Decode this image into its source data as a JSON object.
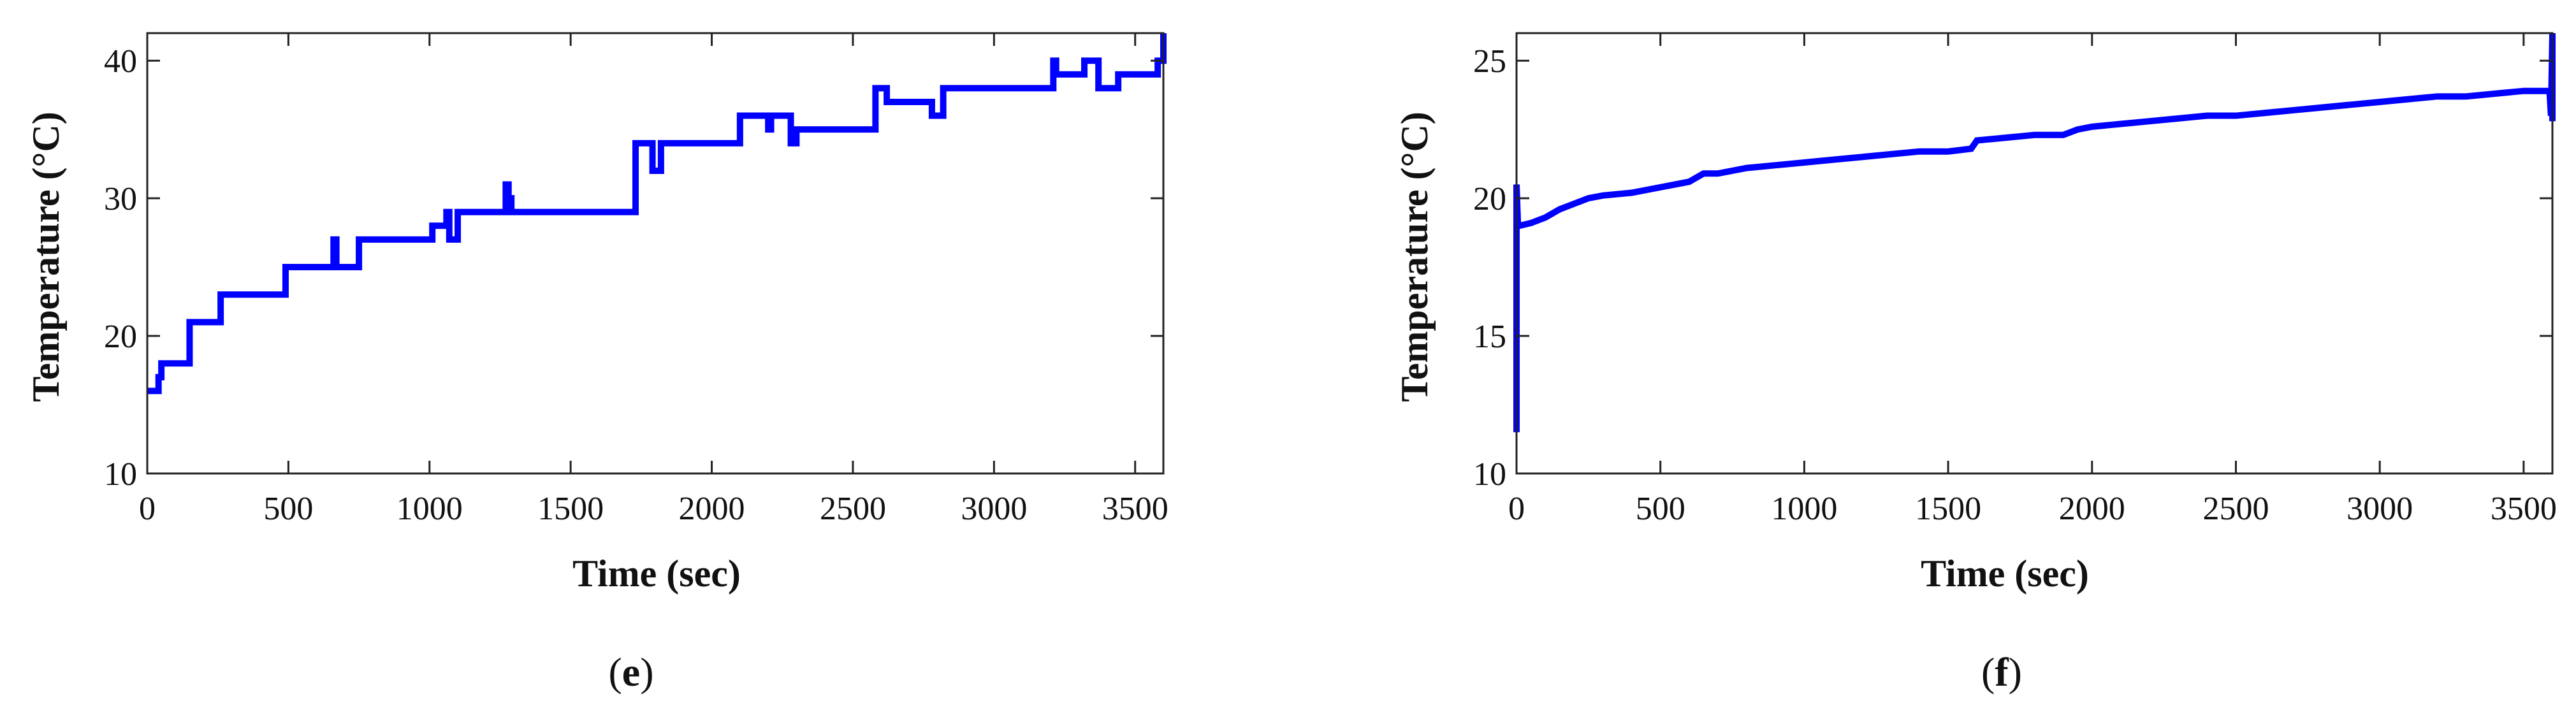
{
  "chart_data": [
    {
      "type": "line",
      "panel_label": "e",
      "xlabel": "Time (sec)",
      "ylabel": "Temperature (°C)",
      "xlim": [
        0,
        3600
      ],
      "ylim": [
        10,
        42
      ],
      "xticks": [
        0,
        500,
        1000,
        1500,
        2000,
        2500,
        3000,
        3500
      ],
      "yticks": [
        10,
        20,
        30,
        40
      ],
      "xtick_labels": [
        "0",
        "500",
        "1000",
        "1500",
        "2000",
        "2500",
        "3000",
        "3500"
      ],
      "ytick_labels": [
        "10",
        "20",
        "30",
        "40"
      ],
      "grid": false,
      "series": [
        {
          "color": "#0000ff",
          "x": [
            0,
            40,
            40,
            50,
            50,
            150,
            150,
            260,
            260,
            490,
            490,
            660,
            660,
            670,
            670,
            750,
            750,
            1010,
            1010,
            1060,
            1060,
            1070,
            1070,
            1100,
            1100,
            1110,
            1110,
            1270,
            1270,
            1280,
            1280,
            1290,
            1290,
            1730,
            1730,
            1790,
            1790,
            1820,
            1820,
            2100,
            2100,
            2200,
            2200,
            2210,
            2210,
            2280,
            2280,
            2300,
            2300,
            2580,
            2580,
            2620,
            2620,
            2780,
            2780,
            2820,
            2820,
            3210,
            3210,
            3220,
            3220,
            3320,
            3320,
            3370,
            3370,
            3440,
            3440,
            3580,
            3580,
            3600,
            3600
          ],
          "y": [
            16,
            16,
            17,
            17,
            18,
            18,
            21,
            21,
            23,
            23,
            25,
            25,
            27,
            27,
            25,
            25,
            27,
            27,
            28,
            28,
            29,
            29,
            27,
            27,
            29,
            29,
            29,
            29,
            31,
            31,
            30,
            30,
            29,
            29,
            34,
            34,
            32,
            32,
            34,
            34,
            36,
            36,
            35,
            35,
            36,
            36,
            34,
            34,
            35,
            35,
            38,
            38,
            37,
            37,
            36,
            36,
            38,
            38,
            40,
            40,
            39,
            39,
            40,
            40,
            38,
            38,
            39,
            39,
            40,
            40,
            42
          ]
        }
      ]
    },
    {
      "type": "line",
      "panel_label": "f",
      "xlabel": "Time (sec)",
      "ylabel": "Temperature (°C)",
      "xlim": [
        0,
        3600
      ],
      "ylim": [
        10,
        26
      ],
      "xticks": [
        0,
        500,
        1000,
        1500,
        2000,
        2500,
        3000,
        3500
      ],
      "yticks": [
        10,
        15,
        20,
        25
      ],
      "xtick_labels": [
        "0",
        "500",
        "1000",
        "1500",
        "2000",
        "2500",
        "3000",
        "3500"
      ],
      "ytick_labels": [
        "10",
        "15",
        "20",
        "25"
      ],
      "grid": false,
      "series": [
        {
          "color": "#0000ff",
          "x": [
            0,
            0,
            5,
            10,
            50,
            100,
            150,
            200,
            250,
            300,
            400,
            500,
            550,
            600,
            650,
            700,
            800,
            900,
            1000,
            1100,
            1200,
            1300,
            1400,
            1500,
            1580,
            1600,
            1700,
            1800,
            1900,
            1950,
            2000,
            2100,
            2200,
            2300,
            2400,
            2500,
            2600,
            2700,
            2800,
            2900,
            3000,
            3100,
            3200,
            3300,
            3400,
            3500,
            3590,
            3595,
            3600,
            3600
          ],
          "y": [
            11.5,
            20.5,
            19.0,
            19.0,
            19.1,
            19.3,
            19.6,
            19.8,
            20.0,
            20.1,
            20.2,
            20.4,
            20.5,
            20.6,
            20.9,
            20.9,
            21.1,
            21.2,
            21.3,
            21.4,
            21.5,
            21.6,
            21.7,
            21.7,
            21.8,
            22.1,
            22.2,
            22.3,
            22.3,
            22.5,
            22.6,
            22.7,
            22.8,
            22.9,
            23.0,
            23.0,
            23.1,
            23.2,
            23.3,
            23.4,
            23.5,
            23.6,
            23.7,
            23.7,
            23.8,
            23.9,
            23.9,
            23.0,
            26.0,
            22.8
          ]
        }
      ]
    }
  ]
}
